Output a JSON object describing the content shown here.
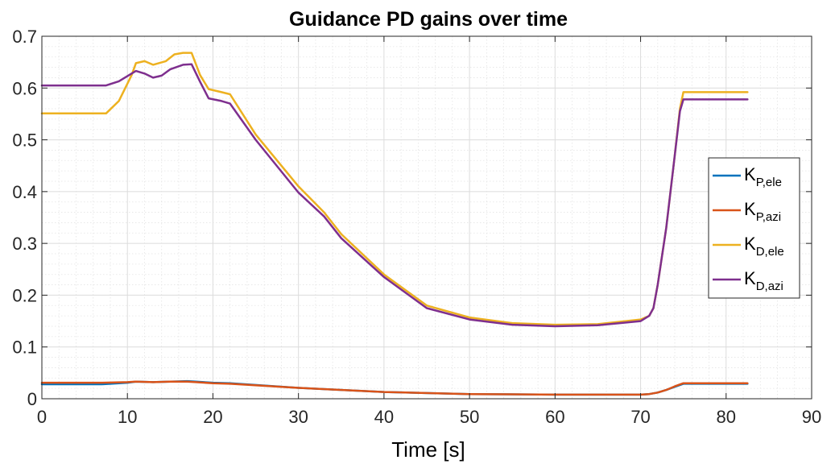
{
  "chart_data": {
    "type": "line",
    "title": "Guidance PD gains over time",
    "xlabel": "Time [s]",
    "ylabel": "",
    "xlim": [
      0,
      90
    ],
    "ylim": [
      0,
      0.7
    ],
    "xticks": [
      0,
      10,
      20,
      30,
      40,
      50,
      60,
      70,
      80,
      90
    ],
    "xtick_labels": [
      "0",
      "10",
      "20",
      "30",
      "40",
      "50",
      "60",
      "70",
      "80",
      "90"
    ],
    "yticks": [
      0,
      0.1,
      0.2,
      0.3,
      0.4,
      0.5,
      0.6,
      0.7
    ],
    "ytick_labels": [
      "0",
      "0.1",
      "0.2",
      "0.3",
      "0.4",
      "0.5",
      "0.6",
      "0.7"
    ],
    "grid": true,
    "minor_grid": true,
    "legend_position": "right",
    "series": [
      {
        "name": "K",
        "subscript": "P,ele",
        "color": "#0072BD",
        "x": [
          0,
          7,
          10,
          11,
          13,
          15,
          17,
          18,
          20,
          22,
          30,
          40,
          50,
          60,
          70,
          71,
          72,
          73,
          74,
          75,
          82.5
        ],
        "y": [
          0.028,
          0.028,
          0.031,
          0.033,
          0.032,
          0.033,
          0.034,
          0.033,
          0.031,
          0.03,
          0.021,
          0.013,
          0.009,
          0.008,
          0.008,
          0.009,
          0.012,
          0.017,
          0.023,
          0.029,
          0.029
        ]
      },
      {
        "name": "K",
        "subscript": "P,azi",
        "color": "#D95319",
        "x": [
          0,
          7,
          10,
          11,
          13,
          15,
          17,
          18,
          20,
          22,
          30,
          40,
          50,
          60,
          70,
          71,
          72,
          73,
          74,
          75,
          82.5
        ],
        "y": [
          0.031,
          0.031,
          0.032,
          0.033,
          0.032,
          0.033,
          0.033,
          0.032,
          0.03,
          0.029,
          0.021,
          0.013,
          0.009,
          0.008,
          0.008,
          0.009,
          0.012,
          0.017,
          0.024,
          0.03,
          0.03
        ]
      },
      {
        "name": "K",
        "subscript": "D,ele",
        "color": "#EDB120",
        "x": [
          0,
          7.5,
          9,
          10.5,
          11,
          12,
          13,
          14.5,
          15.5,
          16.5,
          17.5,
          18.5,
          19.5,
          21,
          22,
          25,
          30,
          33,
          35,
          40,
          45,
          50,
          55,
          60,
          65,
          70,
          71,
          71.5,
          72,
          73,
          74,
          74.6,
          75,
          82.5
        ],
        "y": [
          0.551,
          0.551,
          0.575,
          0.625,
          0.648,
          0.652,
          0.645,
          0.652,
          0.665,
          0.668,
          0.668,
          0.625,
          0.598,
          0.592,
          0.588,
          0.51,
          0.41,
          0.36,
          0.318,
          0.24,
          0.18,
          0.157,
          0.146,
          0.143,
          0.144,
          0.153,
          0.16,
          0.175,
          0.22,
          0.33,
          0.47,
          0.56,
          0.592,
          0.592
        ]
      },
      {
        "name": "K",
        "subscript": "D,azi",
        "color": "#7E2F8E",
        "x": [
          0,
          7.5,
          9,
          11,
          12,
          13,
          14,
          15,
          16.5,
          17.5,
          18.5,
          19.5,
          21,
          22,
          25,
          30,
          33,
          35,
          40,
          45,
          50,
          55,
          60,
          65,
          70,
          71,
          71.5,
          72,
          73,
          74,
          74.6,
          75,
          82.5
        ],
        "y": [
          0.605,
          0.605,
          0.613,
          0.633,
          0.628,
          0.62,
          0.624,
          0.636,
          0.645,
          0.646,
          0.612,
          0.58,
          0.575,
          0.57,
          0.5,
          0.398,
          0.352,
          0.31,
          0.235,
          0.175,
          0.153,
          0.143,
          0.14,
          0.142,
          0.15,
          0.16,
          0.175,
          0.22,
          0.33,
          0.47,
          0.555,
          0.578,
          0.578
        ]
      }
    ]
  }
}
